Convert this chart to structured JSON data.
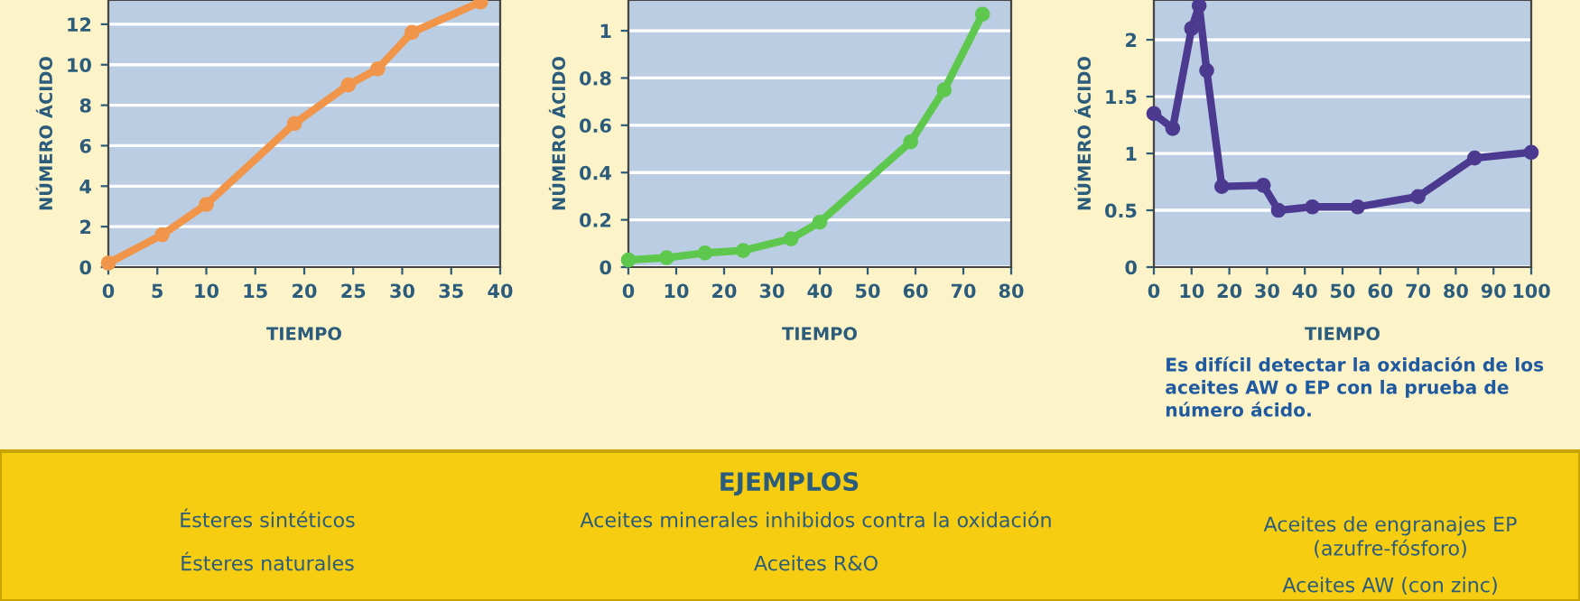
{
  "chart_data": [
    {
      "type": "line",
      "xlabel": "TIEMPO",
      "ylabel": "NÚMERO ÁCIDO",
      "x": [
        0,
        5.5,
        10,
        19,
        24.5,
        27.5,
        31,
        38
      ],
      "series": [
        {
          "color": "#f0954a",
          "values": [
            0.2,
            1.6,
            3.1,
            7.1,
            9.0,
            9.8,
            11.6,
            13.1
          ]
        }
      ],
      "xlim": [
        0,
        40
      ],
      "ylim": [
        0,
        13.2
      ],
      "xticks": [
        0,
        5,
        10,
        15,
        20,
        25,
        30,
        35,
        40
      ],
      "yticks": [
        0,
        2,
        4,
        6,
        8,
        10,
        12
      ],
      "grid": "y",
      "marker": "circle",
      "line_style": "solid"
    },
    {
      "type": "line",
      "xlabel": "TIEMPO",
      "ylabel": "NÚMERO ÁCIDO",
      "x": [
        0,
        8,
        16,
        24,
        34,
        40,
        59,
        66,
        74
      ],
      "series": [
        {
          "color": "#5ec84e",
          "values": [
            0.03,
            0.04,
            0.06,
            0.07,
            0.12,
            0.19,
            0.53,
            0.75,
            1.07
          ]
        }
      ],
      "xlim": [
        0,
        80
      ],
      "ylim": [
        0,
        1.13
      ],
      "xticks": [
        0,
        10,
        20,
        30,
        40,
        50,
        60,
        70,
        80
      ],
      "yticks": [
        0,
        0.2,
        0.4,
        0.6,
        0.8,
        1
      ],
      "grid": "y",
      "marker": "circle",
      "line_style": "solid"
    },
    {
      "type": "line",
      "xlabel": "TIEMPO",
      "ylabel": "NÚMERO ÁCIDO",
      "x": [
        0,
        5,
        10,
        12,
        14,
        18,
        29,
        33,
        42,
        54,
        70,
        85,
        100
      ],
      "series": [
        {
          "color": "#4b3a8f",
          "values": [
            1.35,
            1.22,
            2.1,
            2.3,
            1.73,
            0.71,
            0.72,
            0.5,
            0.53,
            0.53,
            0.62,
            0.96,
            1.01
          ]
        }
      ],
      "xlim": [
        0,
        100
      ],
      "ylim": [
        0,
        2.35
      ],
      "xticks": [
        0,
        10,
        20,
        30,
        40,
        50,
        60,
        70,
        80,
        90,
        100
      ],
      "yticks": [
        0,
        0.5,
        1,
        1.5,
        2
      ],
      "grid": "y",
      "marker": "circle",
      "line_style": "solid",
      "annotations": [
        "Es difícil detectar la oxidación de los\naceites AW o EP con la prueba de\nnúmero ácido."
      ]
    },
    {
      "type": "other",
      "title": "EJEMPLOS",
      "annotations": [
        "Ésteres sintéticos",
        "Ésteres naturales",
        "Aceites minerales inhibidos contra la oxidación",
        "Aceites R&O",
        "Aceites de engranajes EP\n(azufre-fósforo)",
        "Aceites AW (con zinc)"
      ]
    }
  ]
}
